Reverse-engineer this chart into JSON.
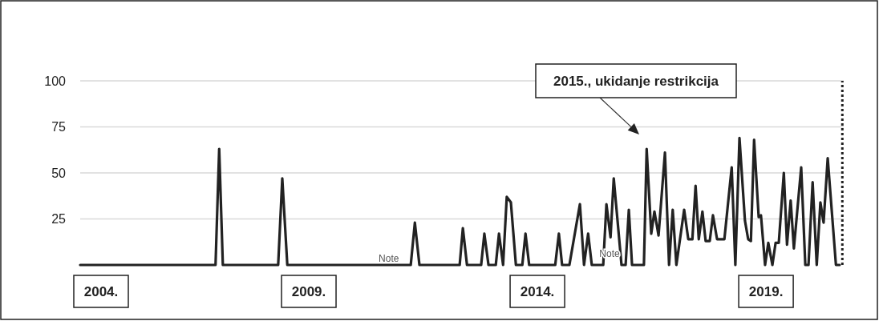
{
  "chart_data": {
    "type": "line",
    "x": [
      2004.0,
      2006.96,
      2007.04,
      2007.12,
      2008.33,
      2008.42,
      2008.53,
      2011.23,
      2011.32,
      2011.42,
      2012.3,
      2012.37,
      2012.46,
      2012.77,
      2012.84,
      2012.93,
      2013.09,
      2013.16,
      2013.25,
      2013.33,
      2013.42,
      2013.53,
      2013.67,
      2013.74,
      2013.82,
      2014.39,
      2014.47,
      2014.54,
      2014.7,
      2014.93,
      2015.02,
      2015.11,
      2015.19,
      2015.44,
      2015.51,
      2015.6,
      2015.67,
      2015.84,
      2015.93,
      2016.0,
      2016.07,
      2016.33,
      2016.39,
      2016.49,
      2016.56,
      2016.65,
      2016.79,
      2016.88,
      2016.96,
      2017.04,
      2017.21,
      2017.3,
      2017.39,
      2017.46,
      2017.53,
      2017.61,
      2017.68,
      2017.77,
      2017.84,
      2017.93,
      2018.09,
      2018.25,
      2018.33,
      2018.42,
      2018.54,
      2018.61,
      2018.67,
      2018.74,
      2018.84,
      2018.89,
      2018.98,
      2019.05,
      2019.14,
      2019.21,
      2019.28,
      2019.39,
      2019.46,
      2019.54,
      2019.61,
      2019.77,
      2019.86,
      2019.93,
      2020.02,
      2020.11,
      2020.19,
      2020.26,
      2020.35,
      2020.53,
      2020.61
    ],
    "series": [
      {
        "color": "#222222",
        "values": [
          0,
          0,
          63,
          0,
          0,
          47,
          0,
          0,
          23,
          0,
          0,
          20,
          0,
          0,
          17,
          0,
          0,
          17,
          0,
          37,
          34,
          0,
          0,
          17,
          0,
          0,
          17,
          0,
          0,
          33,
          0,
          17,
          0,
          0,
          33,
          15,
          47,
          0,
          0,
          30,
          0,
          0,
          63,
          17,
          29,
          16,
          61,
          0,
          30,
          0,
          30,
          14,
          14,
          43,
          14,
          29,
          13,
          13,
          27,
          14,
          14,
          53,
          0,
          69,
          24,
          14,
          13,
          68,
          26,
          27,
          0,
          12,
          0,
          12,
          12,
          50,
          11,
          35,
          9,
          53,
          0,
          0,
          45,
          0,
          34,
          23,
          58,
          0,
          0
        ]
      }
    ],
    "xlim": [
      2004,
      2020.7
    ],
    "xticks": [
      {
        "value": 2004,
        "label": "2004."
      },
      {
        "value": 2009,
        "label": "2009."
      },
      {
        "value": 2014,
        "label": "2014."
      },
      {
        "value": 2019,
        "label": "2019."
      }
    ],
    "ylim": [
      0,
      100
    ],
    "yticks": [
      25,
      50,
      75,
      100
    ],
    "grid": "y",
    "line_style": "solid",
    "ref_lines": [
      {
        "axis": "x",
        "value": 2020.67,
        "color": "#222222",
        "line_style": "dotted"
      }
    ],
    "annotations": [
      "2015., ukidanje restrikcija",
      {
        "text": "Note",
        "x": 2010.75,
        "y": 0
      },
      "Note"
    ]
  }
}
